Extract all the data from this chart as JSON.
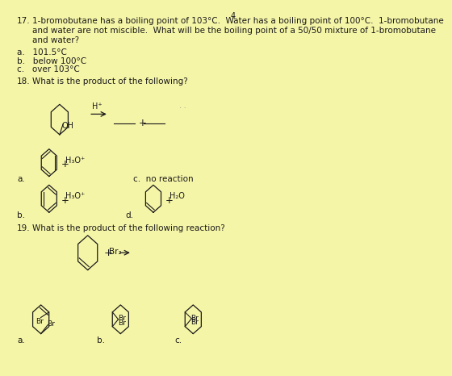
{
  "background_color": "#f5f5a8",
  "text_color": "#1a1a1a",
  "page_number": "4",
  "q17_number": "17.",
  "q17_text1": "1-bromobutane has a boiling point of 103°C.  Water has a boiling point of 100°C.  1-bromobutane",
  "q17_text2": "and water are not miscible.  What will be the boiling point of a 50/50 mixture of 1-bromobutane",
  "q17_text3": "and water?",
  "q17_a": "a.   101.5°C",
  "q17_b": "b.   below 100°C",
  "q17_c": "c.   over 103°C",
  "q18_number": "18.",
  "q18_text": "What is the product of the following?",
  "q19_number": "19.",
  "q19_text": "What is the product of the following reaction?",
  "font_size_q": 7.5,
  "font_size_label": 7.0,
  "font_size_chem": 6.5,
  "font_size_page": 7.0
}
